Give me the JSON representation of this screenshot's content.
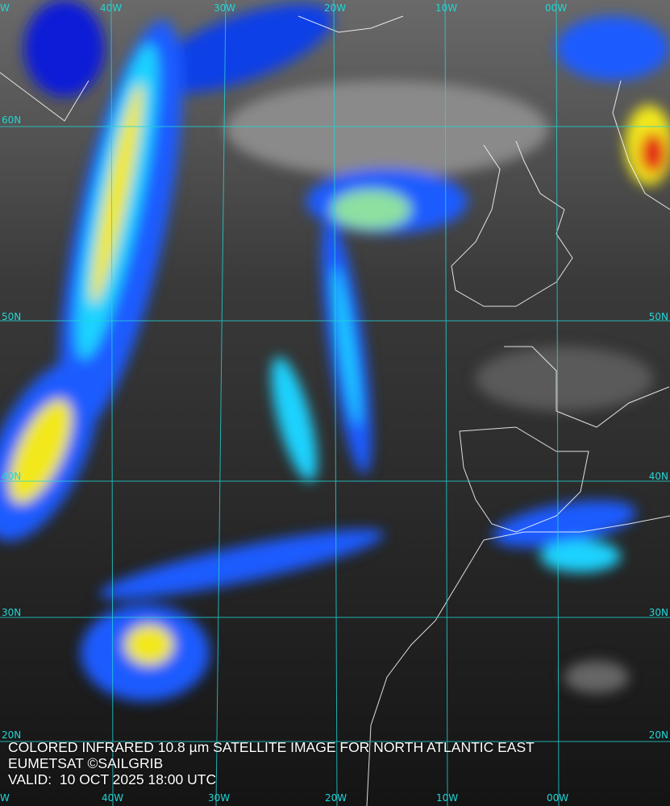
{
  "caption": {
    "line1": "COLORED INFRARED 10.8 µm SATELLITE IMAGE FOR NORTH ATLANTIC EAST",
    "line2": "EUMETSAT ©SAILGRIB",
    "line3": "VALID:  10 OCT 2025 18:00 UTC"
  },
  "grid": {
    "color": "#22d6d6",
    "top_lon_labels": [
      "W",
      "40W",
      "30W",
      "20W",
      "10W",
      "00W"
    ],
    "bottom_lon_labels": [
      "W",
      "40W",
      "30W",
      "20W",
      "10W",
      "00W"
    ],
    "left_lat_labels": [
      "60N",
      "50N",
      "40N",
      "30N",
      "20N"
    ],
    "right_lat_labels": [
      "50N",
      "40N",
      "30N",
      "20N"
    ]
  },
  "colors": {
    "cold_cloud_blue": "#0a1fd6",
    "cyan": "#1fd3ff",
    "yellow": "#f2e81a",
    "red": "#e41b14",
    "coastline": "#ffffff"
  }
}
